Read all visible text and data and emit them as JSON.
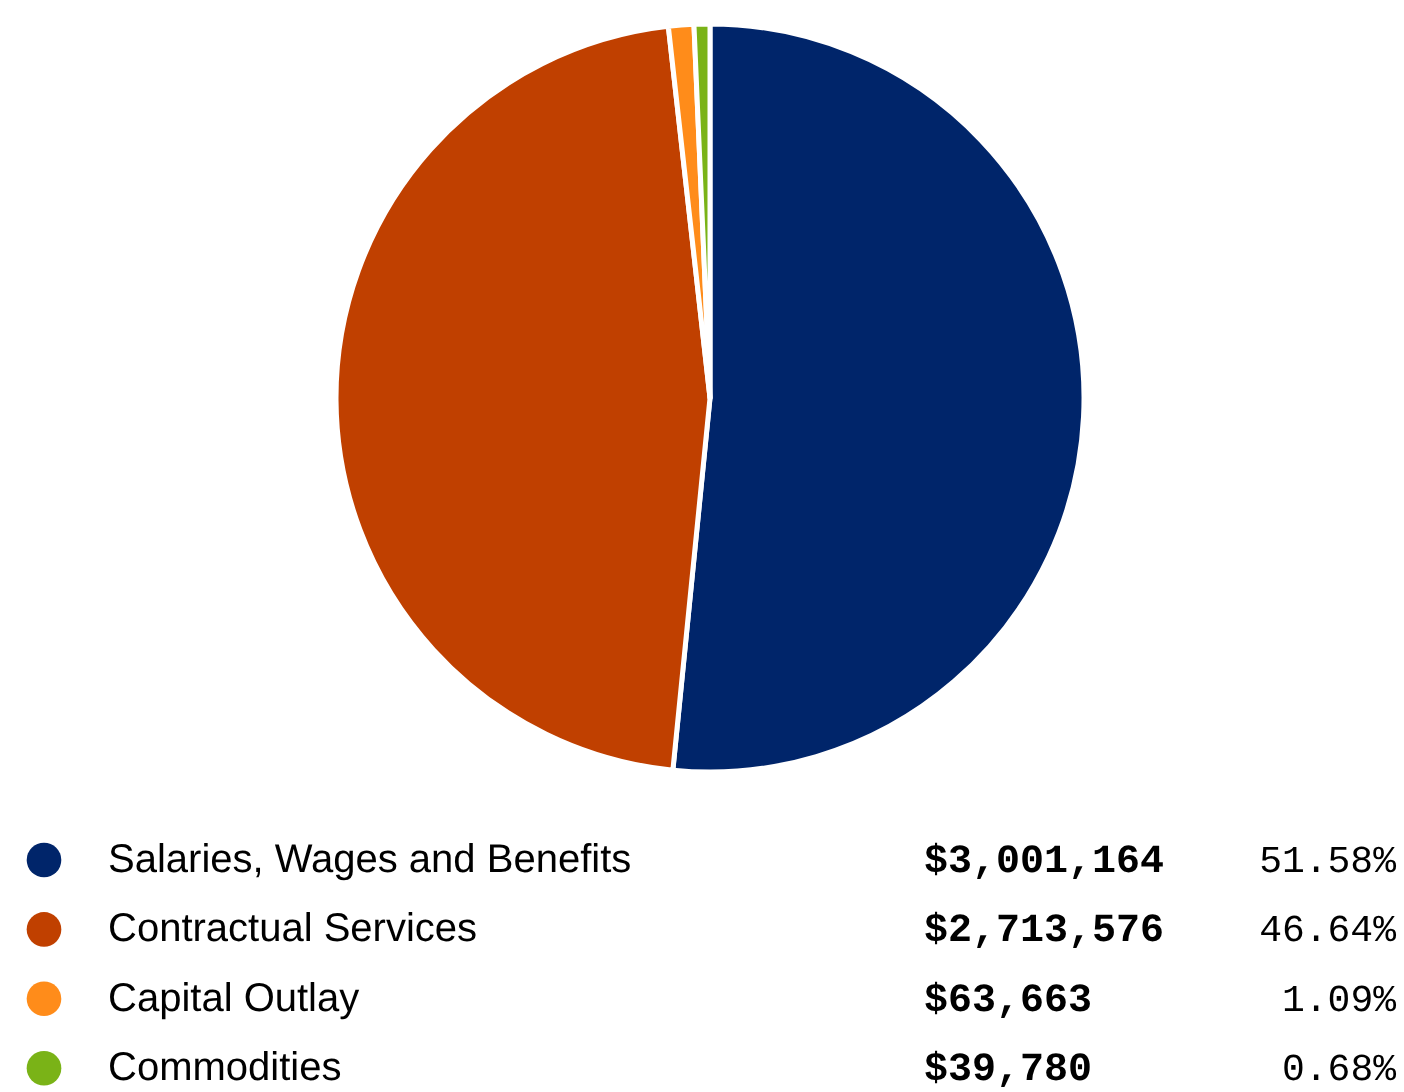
{
  "chart_data": {
    "type": "pie",
    "categories": [
      "Salaries, Wages and Benefits",
      "Contractual Services",
      "Capital Outlay",
      "Commodities"
    ],
    "values": [
      3001164,
      2713576,
      63663,
      39780
    ],
    "value_labels": [
      "$3,001,164",
      "$2,713,576",
      "$63,663",
      "$39,780"
    ],
    "annotations": [
      "51.58%",
      "46.64%",
      "1.09%",
      "0.68%"
    ],
    "colors": [
      "#00256a",
      "#c04000",
      "#ff8c1a",
      "#7ab317"
    ],
    "legend": "bottom"
  }
}
